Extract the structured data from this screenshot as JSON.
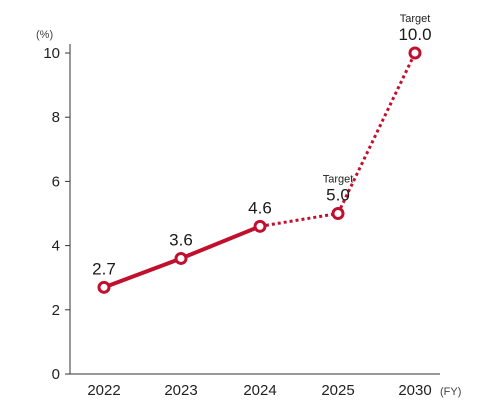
{
  "chart_data": {
    "type": "line",
    "categories": [
      "2022",
      "2023",
      "2024",
      "2025",
      "2030"
    ],
    "values": [
      2.7,
      3.6,
      4.6,
      5.0,
      10.0
    ],
    "value_labels": [
      "2.7",
      "3.6",
      "4.6",
      "5.0",
      "10.0"
    ],
    "annotations": [
      "",
      "",
      "",
      "Target",
      "Target"
    ],
    "line_style": [
      "solid",
      "solid",
      "dotted",
      "dotted"
    ],
    "y_unit": "(%)",
    "x_unit": "(FY)",
    "ylim": [
      0,
      10
    ],
    "yticks": [
      0,
      2,
      4,
      6,
      8,
      10
    ],
    "grid": false,
    "legend": "none",
    "color": "#c0102e"
  }
}
